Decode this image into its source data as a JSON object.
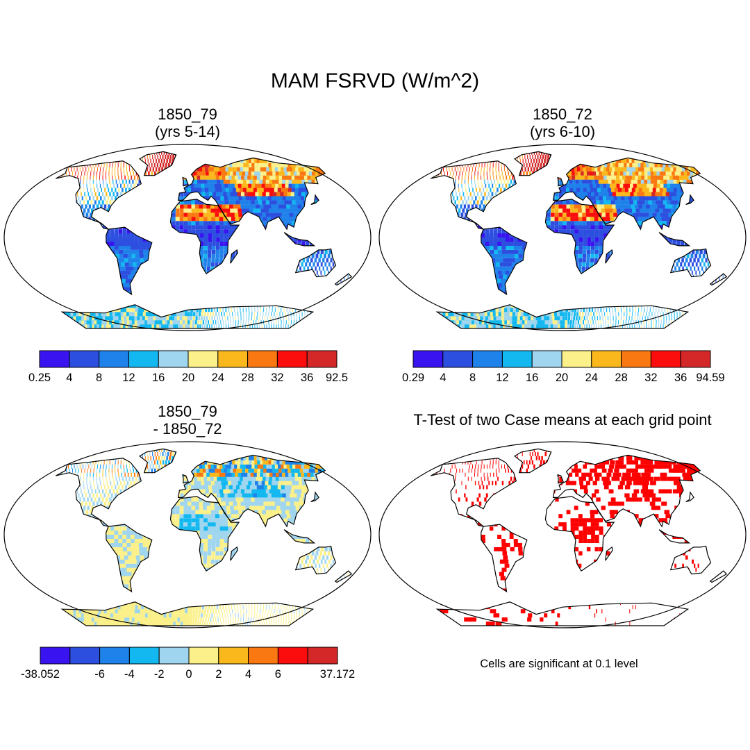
{
  "title": "MAM FSRVD (W/m^2)",
  "panels": [
    {
      "id": "case1",
      "title_line1": "1850_79",
      "title_line2": "(yrs 5-14)",
      "type": "field"
    },
    {
      "id": "case2",
      "title_line1": "1850_72",
      "title_line2": "(yrs 6-10)",
      "type": "field"
    },
    {
      "id": "diff",
      "title_line1": "1850_79",
      "title_line2": "- 1850_72",
      "type": "difference"
    },
    {
      "id": "ttest",
      "title_line1": "T-Test of two Case means at each grid point",
      "type": "significance"
    }
  ],
  "colorbars": {
    "case1": {
      "colors": [
        "#3a14f0",
        "#2d4fe0",
        "#1f82ea",
        "#14b8f0",
        "#9fd5ee",
        "#fbf08a",
        "#fbb81d",
        "#f97812",
        "#fb0d0d",
        "#d42828"
      ],
      "labels": [
        "0.25",
        "4",
        "8",
        "12",
        "16",
        "20",
        "24",
        "28",
        "32",
        "36",
        "92.5"
      ]
    },
    "case2": {
      "colors": [
        "#3a14f0",
        "#2d4fe0",
        "#1f82ea",
        "#14b8f0",
        "#9fd5ee",
        "#fbf08a",
        "#fbb81d",
        "#f97812",
        "#fb0d0d",
        "#d42828"
      ],
      "labels": [
        "0.29",
        "4",
        "8",
        "12",
        "16",
        "20",
        "24",
        "28",
        "32",
        "36",
        "94.59"
      ]
    },
    "diff": {
      "colors": [
        "#3a14f0",
        "#2d4fe0",
        "#1f82ea",
        "#14b8f0",
        "#9fd5ee",
        "#fbf08a",
        "#fbb81d",
        "#f97812",
        "#fb0d0d",
        "#d42828"
      ],
      "labels": [
        "-38.052",
        "",
        "-6",
        "-4",
        "-2",
        "0",
        "2",
        "4",
        "6",
        "",
        "37.172"
      ]
    }
  },
  "significance_note": "Cells are significant at 0.1 level",
  "significance_color": "#ff0000"
}
